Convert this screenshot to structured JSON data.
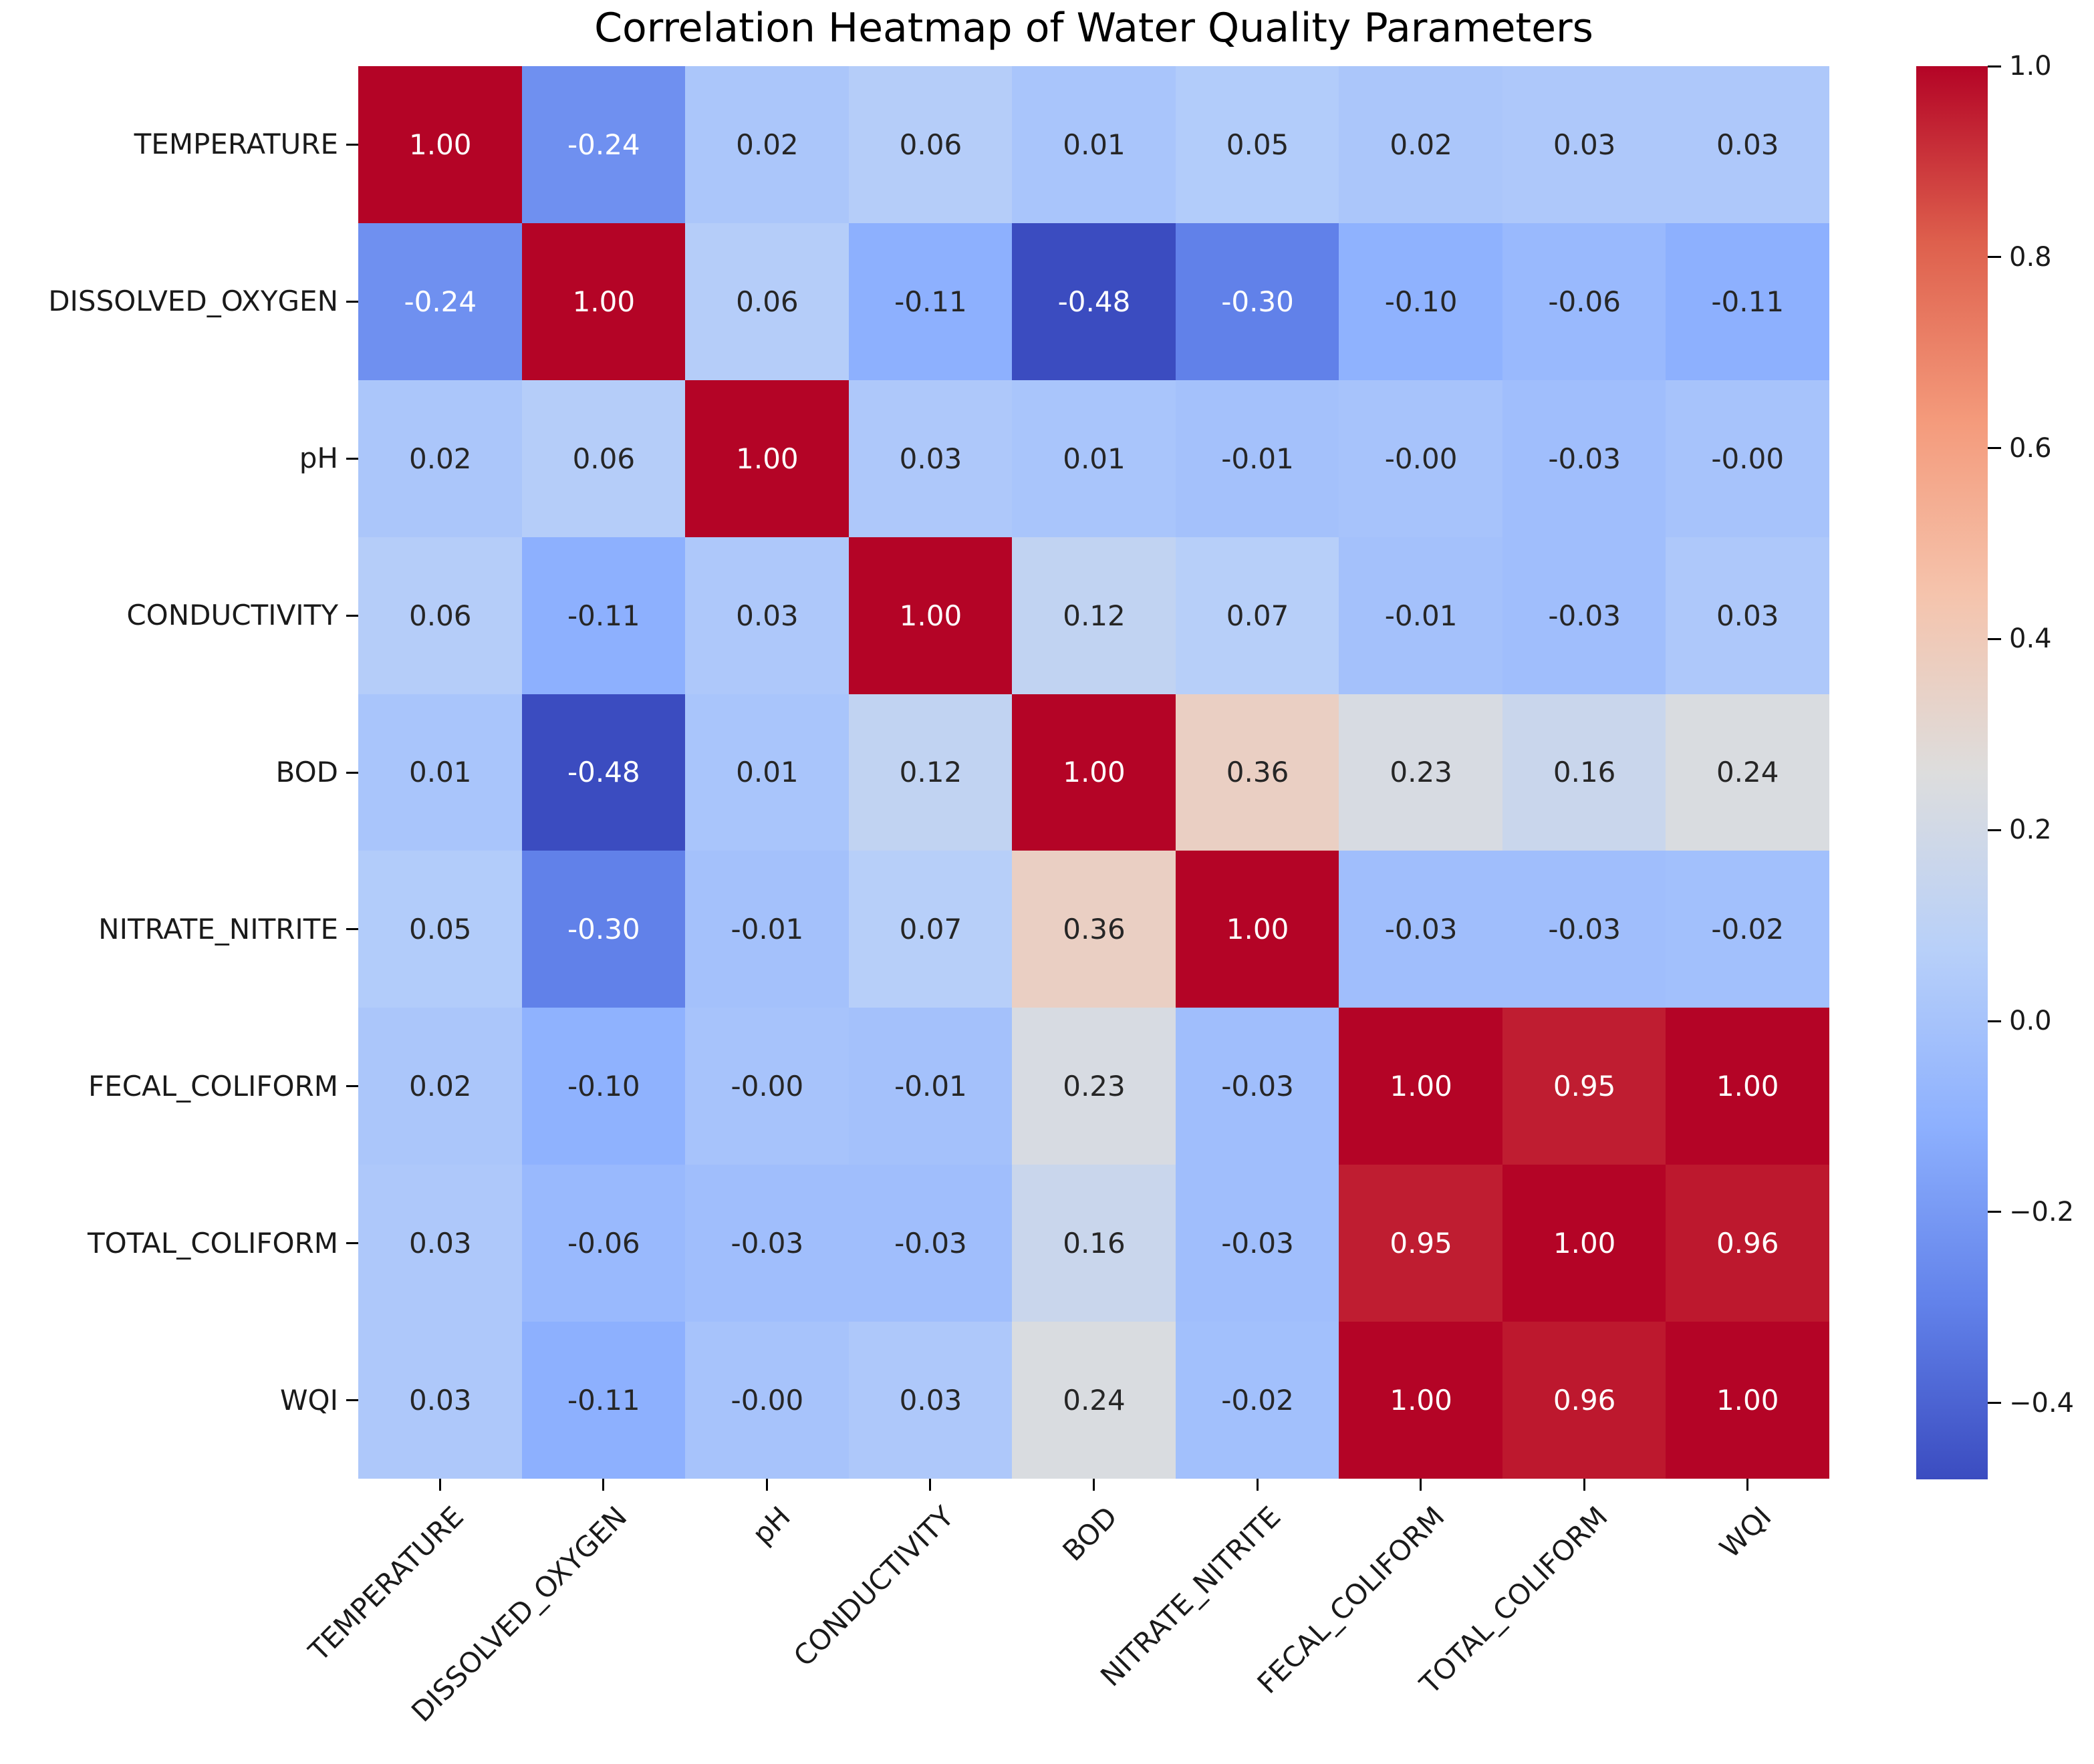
{
  "chart_data": {
    "type": "heatmap",
    "title": "Correlation Heatmap of Water Quality Parameters",
    "categories": [
      "TEMPERATURE",
      "DISSOLVED_OXYGEN",
      "pH",
      "CONDUCTIVITY",
      "BOD",
      "NITRATE_NITRITE",
      "FECAL_COLIFORM",
      "TOTAL_COLIFORM",
      "WQI"
    ],
    "values": [
      [
        "1.00",
        "-0.24",
        "0.02",
        "0.06",
        "0.01",
        "0.05",
        "0.02",
        "0.03",
        "0.03"
      ],
      [
        "-0.24",
        "1.00",
        "0.06",
        "-0.11",
        "-0.48",
        "-0.30",
        "-0.10",
        "-0.06",
        "-0.11"
      ],
      [
        "0.02",
        "0.06",
        "1.00",
        "0.03",
        "0.01",
        "-0.01",
        "-0.00",
        "-0.03",
        "-0.00"
      ],
      [
        "0.06",
        "-0.11",
        "0.03",
        "1.00",
        "0.12",
        "0.07",
        "-0.01",
        "-0.03",
        "0.03"
      ],
      [
        "0.01",
        "-0.48",
        "0.01",
        "0.12",
        "1.00",
        "0.36",
        "0.23",
        "0.16",
        "0.24"
      ],
      [
        "0.05",
        "-0.30",
        "-0.01",
        "0.07",
        "0.36",
        "1.00",
        "-0.03",
        "-0.03",
        "-0.02"
      ],
      [
        "0.02",
        "-0.10",
        "-0.00",
        "-0.01",
        "0.23",
        "-0.03",
        "1.00",
        "0.95",
        "1.00"
      ],
      [
        "0.03",
        "-0.06",
        "-0.03",
        "-0.03",
        "0.16",
        "-0.03",
        "0.95",
        "1.00",
        "0.96"
      ],
      [
        "0.03",
        "-0.11",
        "-0.00",
        "0.03",
        "0.24",
        "-0.02",
        "1.00",
        "0.96",
        "1.00"
      ]
    ],
    "colormap": "coolwarm",
    "vmin": -0.48,
    "vmax": 1.0,
    "grid": false,
    "legend_position": "right-colorbar",
    "colorbar_ticks": [
      {
        "label": "1.0",
        "value": 1.0
      },
      {
        "label": "0.8",
        "value": 0.8
      },
      {
        "label": "0.6",
        "value": 0.6
      },
      {
        "label": "0.4",
        "value": 0.4
      },
      {
        "label": "0.2",
        "value": 0.2
      },
      {
        "label": "0.0",
        "value": 0.0
      },
      {
        "label": "−0.2",
        "value": -0.2
      },
      {
        "label": "−0.4",
        "value": -0.4
      }
    ],
    "annotation_text_colors": {
      "light": "#ffffff",
      "dark": "#262626"
    }
  }
}
